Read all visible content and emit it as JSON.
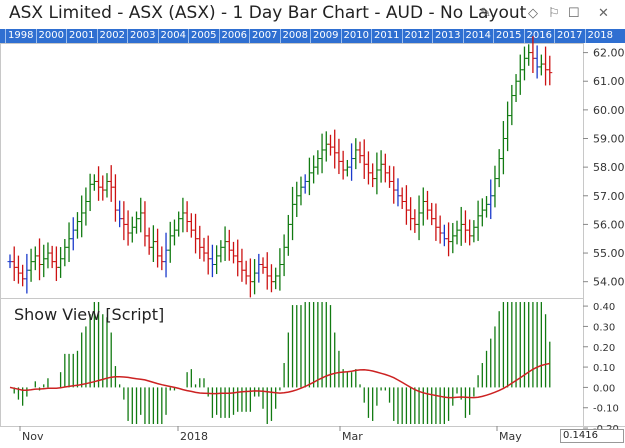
{
  "window": {
    "title": "ASX Limited - ASX (ASX) - 1 Day Bar Chart - AUD - No Layout"
  },
  "toolbar_icons": [
    "edit-pencil-icon",
    "diamond-icon",
    "bell-icon",
    "window-icon",
    "close-icon"
  ],
  "year_bar": {
    "years": [
      "1998",
      "2000",
      "2001",
      "2002",
      "2003",
      "2004",
      "2005",
      "2006",
      "2007",
      "2008",
      "2009",
      "2010",
      "2011",
      "2012",
      "2013",
      "2014",
      "2015",
      "2016",
      "2017",
      "2018"
    ],
    "color": "#2f6fd1"
  },
  "price_pane": {
    "y_ticks": [
      "62.00",
      "61.00",
      "60.00",
      "59.00",
      "58.00",
      "57.00",
      "56.00",
      "55.00",
      "54.00"
    ],
    "y_range": [
      53.5,
      62.3
    ]
  },
  "indicator_pane": {
    "label": "Show View [Script]",
    "y_ticks": [
      "0.40",
      "0.30",
      "0.20",
      "0.10",
      "0.00",
      "-0.10",
      "-0.20"
    ],
    "y_range": [
      -0.18,
      0.43
    ]
  },
  "x_axis": {
    "labels": [
      "Nov",
      "2018",
      "Mar",
      "May"
    ]
  },
  "input": {
    "value": "0.1416"
  },
  "colors": {
    "up": "#117a11",
    "down": "#cc1111",
    "neutral": "#1a3acc",
    "ma_line": "#cc2222",
    "hist": "#117a11"
  },
  "chart_data": {
    "type": "bar",
    "series": [
      {
        "name": "price",
        "close": [
          54.7,
          54.5,
          54.3,
          54.1,
          54.4,
          54.7,
          54.9,
          54.6,
          54.8,
          55.0,
          54.7,
          54.5,
          54.8,
          55.2,
          55.5,
          55.8,
          56.1,
          56.4,
          56.8,
          57.4,
          57.5,
          57.3,
          57.2,
          57.5,
          57.3,
          56.5,
          56.2,
          56.0,
          55.7,
          55.9,
          56.2,
          56.4,
          55.6,
          55.2,
          55.4,
          54.9,
          54.7,
          55.1,
          55.6,
          55.8,
          56.2,
          56.4,
          56.1,
          55.8,
          55.5,
          55.2,
          55.0,
          54.8,
          54.6,
          54.9,
          55.2,
          55.4,
          55.1,
          54.9,
          54.7,
          54.4,
          54.2,
          54.0,
          54.3,
          54.6,
          54.5,
          54.2,
          54.0,
          54.2,
          54.6,
          55.2,
          56.0,
          56.7,
          57.0,
          57.3,
          57.5,
          57.8,
          58.0,
          58.3,
          58.6,
          58.8,
          58.7,
          58.5,
          58.2,
          57.9,
          58.0,
          58.3,
          58.6,
          58.4,
          58.1,
          57.8,
          57.6,
          57.9,
          58.1,
          57.8,
          57.5,
          57.2,
          57.0,
          56.8,
          56.5,
          56.2,
          56.0,
          56.4,
          56.8,
          56.5,
          56.2,
          55.9,
          55.7,
          55.5,
          55.4,
          55.6,
          55.8,
          56.0,
          55.8,
          55.6,
          55.9,
          56.3,
          56.5,
          56.7,
          57.0,
          57.6,
          58.3,
          59.0,
          59.8,
          60.5,
          61.0,
          61.4,
          61.8,
          62.0,
          61.8,
          61.5,
          61.6,
          61.4,
          61.3
        ]
      }
    ]
  }
}
